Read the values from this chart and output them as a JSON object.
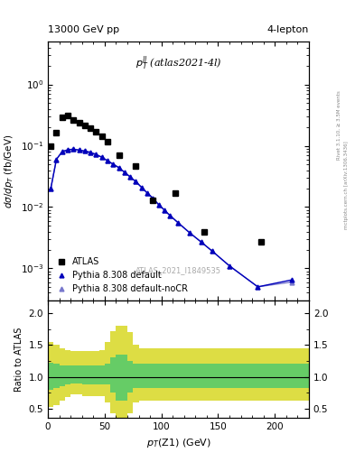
{
  "title_left": "13000 GeV pp",
  "title_right": "4-lepton",
  "annotation": "$p_T^{ll}$ (atlas2021-4l)",
  "watermark": "ATLAS_2021_I1849535",
  "rivet_text": "Rivet 3.1.10, ≥ 3.5M events",
  "inspire_text": "mctplots.cern.ch [arXiv:1306.3436]",
  "ylabel_main": "$d\\sigma/dp_T$ (fb/GeV)",
  "ylabel_ratio": "Ratio to ATLAS",
  "xlabel": "$p_T$(Z1) (GeV)",
  "xlim": [
    0,
    230
  ],
  "ylim_main": [
    0.0003,
    5
  ],
  "ylim_ratio": [
    0.35,
    2.2
  ],
  "atlas_x": [
    2.5,
    7.5,
    12.5,
    17.5,
    22.5,
    27.5,
    32.5,
    37.5,
    42.5,
    47.5,
    52.5,
    62.5,
    77.5,
    92.5,
    112.5,
    137.5,
    187.5
  ],
  "atlas_y": [
    0.1,
    0.165,
    0.295,
    0.31,
    0.265,
    0.235,
    0.215,
    0.195,
    0.17,
    0.145,
    0.115,
    0.07,
    0.046,
    0.013,
    0.017,
    0.004,
    0.0027
  ],
  "pythia_default_x": [
    2.5,
    7.5,
    12.5,
    17.5,
    22.5,
    27.5,
    32.5,
    37.5,
    42.5,
    47.5,
    52.5,
    57.5,
    62.5,
    67.5,
    72.5,
    77.5,
    82.5,
    87.5,
    92.5,
    97.5,
    102.5,
    107.5,
    115.0,
    125.0,
    135.0,
    145.0,
    160.0,
    185.0,
    215.0
  ],
  "pythia_default_y": [
    0.02,
    0.06,
    0.08,
    0.086,
    0.088,
    0.085,
    0.082,
    0.078,
    0.072,
    0.065,
    0.057,
    0.05,
    0.044,
    0.037,
    0.031,
    0.026,
    0.021,
    0.017,
    0.014,
    0.011,
    0.009,
    0.0073,
    0.0055,
    0.0038,
    0.0027,
    0.0019,
    0.0011,
    0.0005,
    0.00065
  ],
  "pythia_default_color": "#0000bb",
  "pythia_nocr_x": [
    2.5,
    7.5,
    12.5,
    17.5,
    22.5,
    27.5,
    32.5,
    37.5,
    42.5,
    47.5,
    52.5,
    57.5,
    62.5,
    67.5,
    72.5,
    77.5,
    82.5,
    87.5,
    92.5,
    97.5,
    102.5,
    107.5,
    115.0,
    125.0,
    135.0,
    145.0,
    160.0,
    185.0,
    215.0
  ],
  "pythia_nocr_y": [
    0.02,
    0.06,
    0.08,
    0.086,
    0.088,
    0.085,
    0.082,
    0.078,
    0.072,
    0.065,
    0.057,
    0.05,
    0.044,
    0.037,
    0.031,
    0.026,
    0.021,
    0.017,
    0.014,
    0.011,
    0.009,
    0.0073,
    0.0055,
    0.0038,
    0.0027,
    0.0019,
    0.0011,
    0.0005,
    0.0006
  ],
  "pythia_nocr_color": "#7777cc",
  "ratio_bins": [
    0,
    5,
    10,
    15,
    20,
    25,
    30,
    35,
    40,
    45,
    50,
    55,
    60,
    65,
    70,
    75,
    80,
    85,
    90,
    95,
    100,
    110,
    120,
    230
  ],
  "ratio_green_lo": [
    0.8,
    0.82,
    0.85,
    0.88,
    0.9,
    0.9,
    0.88,
    0.88,
    0.88,
    0.88,
    0.88,
    0.75,
    0.62,
    0.62,
    0.75,
    0.82,
    0.82,
    0.82,
    0.82,
    0.82,
    0.82,
    0.82,
    0.82,
    0.82
  ],
  "ratio_green_hi": [
    1.22,
    1.2,
    1.18,
    1.18,
    1.18,
    1.18,
    1.18,
    1.18,
    1.18,
    1.18,
    1.2,
    1.3,
    1.35,
    1.35,
    1.25,
    1.2,
    1.2,
    1.2,
    1.2,
    1.2,
    1.2,
    1.2,
    1.2,
    1.2
  ],
  "ratio_yellow_lo": [
    0.52,
    0.55,
    0.62,
    0.68,
    0.72,
    0.72,
    0.7,
    0.7,
    0.7,
    0.7,
    0.6,
    0.42,
    0.35,
    0.35,
    0.42,
    0.6,
    0.62,
    0.62,
    0.62,
    0.62,
    0.62,
    0.62,
    0.62,
    0.62
  ],
  "ratio_yellow_hi": [
    1.55,
    1.5,
    1.45,
    1.42,
    1.4,
    1.4,
    1.4,
    1.4,
    1.4,
    1.42,
    1.55,
    1.72,
    1.8,
    1.8,
    1.7,
    1.5,
    1.45,
    1.45,
    1.45,
    1.45,
    1.45,
    1.45,
    1.45,
    1.45
  ],
  "green_color": "#66cc66",
  "yellow_color": "#dddd44"
}
